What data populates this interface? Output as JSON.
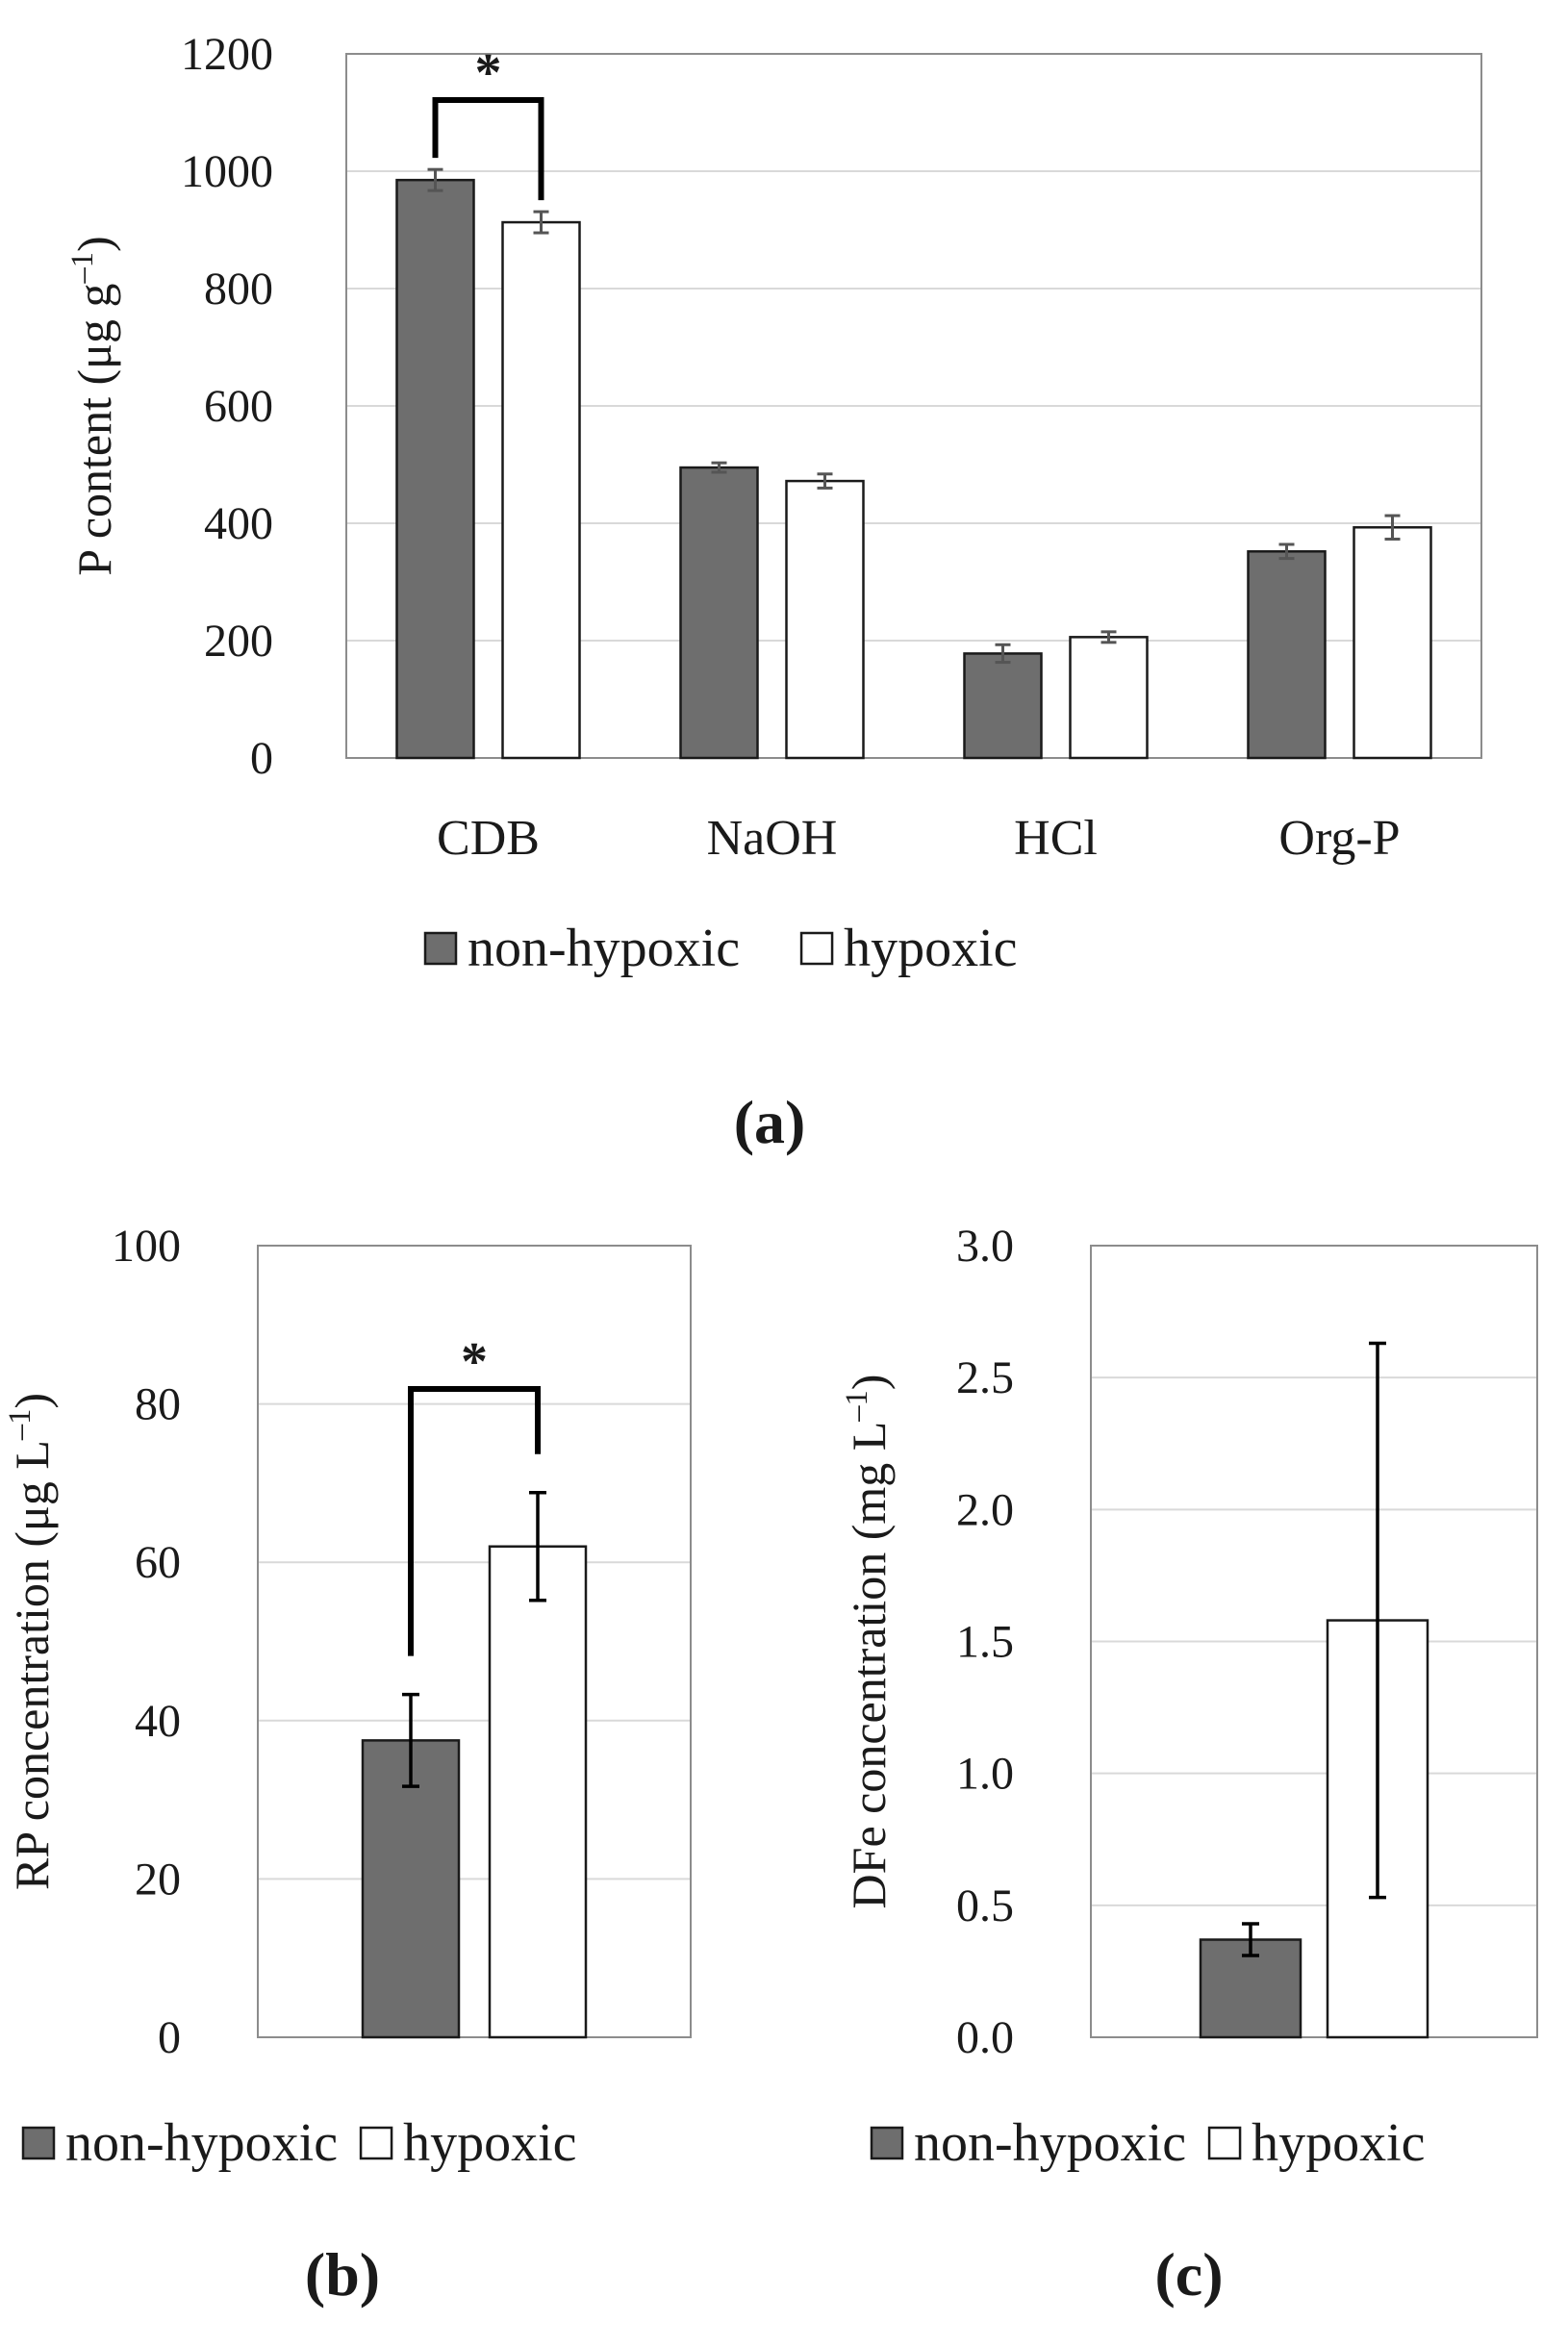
{
  "colors": {
    "non_hypoxic": "#6e6e6e",
    "hypoxic": "#ffffff",
    "bar_stroke": "#1a1a1a",
    "grid": "#d9d9d9",
    "frame": "#8c8c8c",
    "error_bar": "#555555",
    "bracket": "#000000"
  },
  "chart_data": [
    {
      "panel": "(a)",
      "type": "bar",
      "ylabel": "P content (μg g⁻¹)",
      "ylim": [
        0,
        1200
      ],
      "yticks": [
        0,
        200,
        400,
        600,
        800,
        1000,
        1200
      ],
      "grid": true,
      "categories": [
        "CDB",
        "NaOH",
        "HCl",
        "Org-P"
      ],
      "series": [
        {
          "name": "non-hypoxic",
          "values": [
            985,
            495,
            178,
            352
          ],
          "errors": [
            18,
            8,
            15,
            12
          ]
        },
        {
          "name": "hypoxic",
          "values": [
            913,
            472,
            206,
            393
          ],
          "errors": [
            18,
            12,
            9,
            20
          ]
        }
      ],
      "significance": [
        {
          "category": "CDB",
          "label": "*"
        }
      ],
      "legend": [
        "non-hypoxic",
        "hypoxic"
      ],
      "legend_position": "bottom"
    },
    {
      "panel": "(b)",
      "type": "bar",
      "ylabel": "RP concentration (μg L⁻¹)",
      "ylim": [
        0,
        100
      ],
      "yticks": [
        0,
        20,
        40,
        60,
        80,
        100
      ],
      "grid": true,
      "series": [
        {
          "name": "non-hypoxic",
          "values": [
            37.5
          ],
          "errors": [
            5.8
          ]
        },
        {
          "name": "hypoxic",
          "values": [
            62
          ],
          "errors": [
            6.8
          ]
        }
      ],
      "significance": [
        {
          "label": "*"
        }
      ],
      "legend": [
        "non-hypoxic",
        "hypoxic"
      ],
      "legend_position": "bottom"
    },
    {
      "panel": "(c)",
      "type": "bar",
      "ylabel": "DFe concentration (mg L⁻¹)",
      "ylim": [
        0,
        3.0
      ],
      "yticks": [
        "0.0",
        "0.5",
        "1.0",
        "1.5",
        "2.0",
        "2.5",
        "3.0"
      ],
      "grid": true,
      "series": [
        {
          "name": "non-hypoxic",
          "values": [
            0.37
          ],
          "errors": [
            0.06
          ]
        },
        {
          "name": "hypoxic",
          "values": [
            1.58
          ],
          "errors": [
            1.05
          ]
        }
      ],
      "significance": [],
      "legend": [
        "non-hypoxic",
        "hypoxic"
      ],
      "legend_position": "bottom"
    }
  ]
}
